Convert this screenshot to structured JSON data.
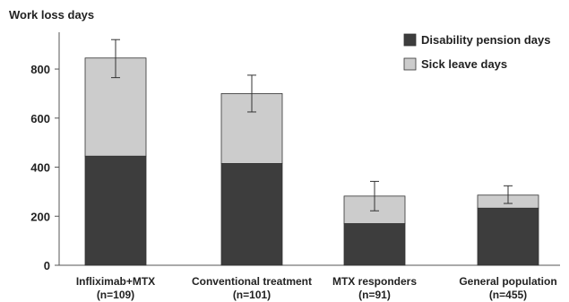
{
  "chart_data": {
    "type": "bar",
    "stacked": true,
    "ylabel": "Work loss days",
    "ylim": [
      0,
      950
    ],
    "yticks": [
      0,
      200,
      400,
      600,
      800
    ],
    "grid": false,
    "legend_position": "top-right",
    "categories": [
      [
        "Infliximab+MTX",
        "(n=109)"
      ],
      [
        "Conventional treatment",
        "(n=101)"
      ],
      [
        "MTX responders",
        "(n=91)"
      ],
      [
        "General population",
        "(n=455)"
      ]
    ],
    "series": [
      {
        "name": "Disability pension days",
        "color": "#3d3d3d",
        "values": [
          445,
          415,
          170,
          233
        ]
      },
      {
        "name": "Sick leave days",
        "color": "#cccccc",
        "values": [
          400,
          285,
          112,
          53
        ]
      }
    ],
    "error_bars": [
      {
        "center": 845,
        "low": 765,
        "high": 920
      },
      {
        "center": 700,
        "low": 625,
        "high": 775
      },
      {
        "center": 282,
        "low": 222,
        "high": 342
      },
      {
        "center": 286,
        "low": 252,
        "high": 324
      }
    ]
  }
}
